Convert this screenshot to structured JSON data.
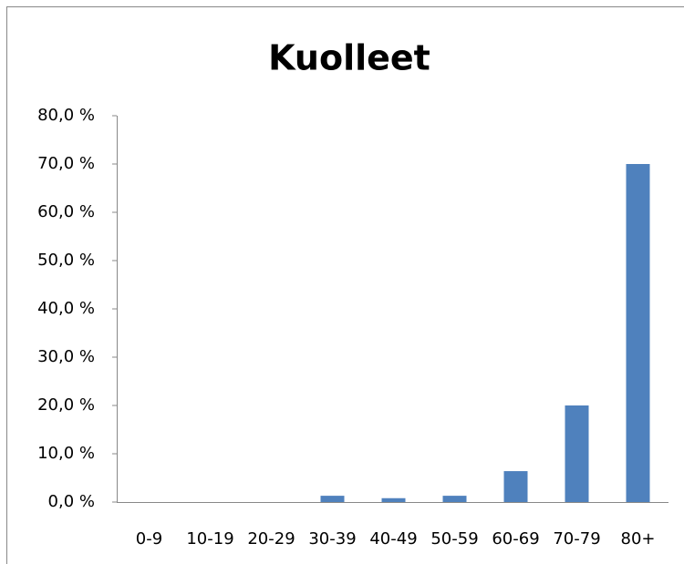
{
  "chart_data": {
    "type": "bar",
    "title": "Kuolleet",
    "categories": [
      "0-9",
      "10-19",
      "20-29",
      "30-39",
      "40-49",
      "50-59",
      "60-69",
      "70-79",
      "80+"
    ],
    "values": [
      0,
      0,
      0,
      1.3,
      0.8,
      1.3,
      6.4,
      20.0,
      70.0
    ],
    "color": "#4f81bd",
    "ylim": [
      0,
      80
    ],
    "yticks": [
      {
        "value": 0,
        "label": "0,0 %"
      },
      {
        "value": 10,
        "label": "10,0 %"
      },
      {
        "value": 20,
        "label": "20,0 %"
      },
      {
        "value": 30,
        "label": "30,0 %"
      },
      {
        "value": 40,
        "label": "40,0 %"
      },
      {
        "value": 50,
        "label": "50,0 %"
      },
      {
        "value": 60,
        "label": "60,0 %"
      },
      {
        "value": 70,
        "label": "70,0 %"
      },
      {
        "value": 80,
        "label": "80,0 %"
      }
    ],
    "grid": false
  }
}
